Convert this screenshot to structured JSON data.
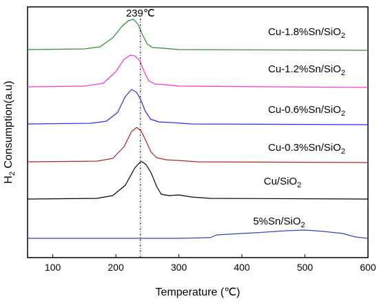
{
  "chart_data": {
    "type": "line",
    "title": "",
    "xlabel": "Temperature (℃)",
    "ylabel_main": "H",
    "ylabel_sub": "2",
    "ylabel_rest": " Consumption(a.u)",
    "xlim": [
      60,
      600
    ],
    "xticks": [
      100,
      200,
      300,
      400,
      500,
      600
    ],
    "grid": false,
    "legend": "none",
    "annotation": {
      "text": "239℃",
      "x": 239
    },
    "series": [
      {
        "name_main": "Cu-1.8%Sn/SiO",
        "name_sub": "2",
        "color": "#2e8b2e",
        "baseline": 0.0,
        "points": [
          [
            60,
            0
          ],
          [
            150,
            0.01
          ],
          [
            175,
            0.04
          ],
          [
            195,
            0.17
          ],
          [
            210,
            0.34
          ],
          [
            220,
            0.42
          ],
          [
            228,
            0.44
          ],
          [
            235,
            0.37
          ],
          [
            243,
            0.2
          ],
          [
            250,
            0.08
          ],
          [
            258,
            0.03
          ],
          [
            275,
            0.02
          ],
          [
            300,
            0.0
          ],
          [
            600,
            -0.01
          ]
        ]
      },
      {
        "name_main": "Cu-1.2%Sn/SiO",
        "name_sub": "2",
        "color": "#ff33cc",
        "baseline": 0.0,
        "points": [
          [
            60,
            0
          ],
          [
            150,
            0.01
          ],
          [
            180,
            0.05
          ],
          [
            200,
            0.22
          ],
          [
            213,
            0.4
          ],
          [
            223,
            0.46
          ],
          [
            230,
            0.45
          ],
          [
            238,
            0.38
          ],
          [
            245,
            0.22
          ],
          [
            252,
            0.09
          ],
          [
            262,
            0.04
          ],
          [
            280,
            0.03
          ],
          [
            300,
            0.01
          ],
          [
            600,
            -0.01
          ]
        ]
      },
      {
        "name_main": "Cu-0.6%Sn/SiO",
        "name_sub": "2",
        "color": "#2a2aff",
        "baseline": 0.0,
        "points": [
          [
            60,
            0
          ],
          [
            160,
            0.01
          ],
          [
            185,
            0.04
          ],
          [
            203,
            0.17
          ],
          [
            215,
            0.4
          ],
          [
            225,
            0.5
          ],
          [
            233,
            0.46
          ],
          [
            240,
            0.34
          ],
          [
            247,
            0.18
          ],
          [
            255,
            0.07
          ],
          [
            268,
            0.03
          ],
          [
            290,
            0.02
          ],
          [
            320,
            0.0
          ],
          [
            600,
            -0.01
          ]
        ]
      },
      {
        "name_main": "Cu-0.3%Sn/SiO",
        "name_sub": "2",
        "color": "#b22222",
        "baseline": 0.0,
        "points": [
          [
            60,
            0
          ],
          [
            170,
            0.01
          ],
          [
            195,
            0.05
          ],
          [
            213,
            0.22
          ],
          [
            225,
            0.44
          ],
          [
            233,
            0.5
          ],
          [
            240,
            0.45
          ],
          [
            248,
            0.3
          ],
          [
            256,
            0.14
          ],
          [
            265,
            0.06
          ],
          [
            280,
            0.03
          ],
          [
            300,
            0.02
          ],
          [
            330,
            0.0
          ],
          [
            600,
            -0.01
          ]
        ]
      },
      {
        "name_main": "Cu/SiO",
        "name_sub": "2",
        "color": "#000000",
        "baseline": 0.0,
        "points": [
          [
            60,
            0
          ],
          [
            170,
            0.01
          ],
          [
            195,
            0.05
          ],
          [
            215,
            0.2
          ],
          [
            230,
            0.45
          ],
          [
            240,
            0.55
          ],
          [
            248,
            0.5
          ],
          [
            256,
            0.38
          ],
          [
            265,
            0.18
          ],
          [
            272,
            0.07
          ],
          [
            285,
            0.05
          ],
          [
            300,
            0.06
          ],
          [
            320,
            0.03
          ],
          [
            350,
            0.01
          ],
          [
            600,
            0.0
          ]
        ]
      },
      {
        "name_main": "5%Sn/SiO",
        "name_sub": "2",
        "color": "#3344aa",
        "baseline": 0.0,
        "points": [
          [
            60,
            0
          ],
          [
            300,
            0.0
          ],
          [
            350,
            0.01
          ],
          [
            360,
            0.05
          ],
          [
            380,
            0.06
          ],
          [
            420,
            0.08
          ],
          [
            470,
            0.11
          ],
          [
            500,
            0.12
          ],
          [
            530,
            0.1
          ],
          [
            560,
            0.07
          ],
          [
            580,
            0.02
          ],
          [
            600,
            0.0
          ]
        ]
      }
    ]
  }
}
